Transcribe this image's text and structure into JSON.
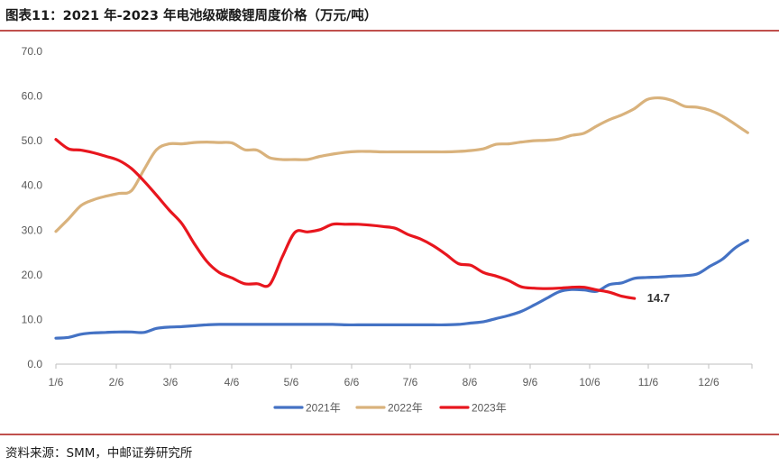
{
  "title": "图表11：2021 年-2023 年电池级碳酸锂周度价格（万元/吨）",
  "source": "资料来源：SMM，中邮证券研究所",
  "chart_data": {
    "type": "line",
    "title": "图表11：2021 年-2023 年电池级碳酸锂周度价格（万元/吨）",
    "xlabel": "",
    "ylabel": "",
    "ylim": [
      0,
      70
    ],
    "yticks": [
      "0.0",
      "10.0",
      "20.0",
      "30.0",
      "40.0",
      "50.0",
      "60.0",
      "70.0"
    ],
    "xticks": [
      "1/6",
      "2/6",
      "3/6",
      "4/6",
      "5/6",
      "6/6",
      "7/6",
      "8/6",
      "9/6",
      "10/6",
      "11/6",
      "12/6"
    ],
    "grid": false,
    "legend_position": "bottom",
    "annotation": "14.7",
    "series": [
      {
        "name": "2021年",
        "color": "#4472c4",
        "values": [
          5.8,
          6.0,
          6.7,
          7.0,
          7.1,
          7.2,
          7.2,
          7.1,
          8.0,
          8.3,
          8.4,
          8.6,
          8.8,
          8.9,
          8.9,
          8.9,
          8.9,
          8.9,
          8.9,
          8.9,
          8.9,
          8.9,
          8.9,
          8.8,
          8.8,
          8.8,
          8.8,
          8.8,
          8.8,
          8.8,
          8.8,
          8.8,
          8.9,
          9.2,
          9.5,
          10.2,
          10.9,
          11.8,
          13.2,
          14.7,
          16.2,
          16.7,
          16.6,
          16.3,
          17.8,
          18.2,
          19.2,
          19.4,
          19.5,
          19.7,
          19.8,
          20.2,
          21.9,
          23.5,
          26.0,
          27.7
        ]
      },
      {
        "name": "2022年",
        "color": "#d9b27c",
        "values": [
          29.7,
          32.5,
          35.5,
          36.8,
          37.6,
          38.2,
          38.8,
          43.5,
          48.0,
          49.3,
          49.3,
          49.6,
          49.7,
          49.6,
          49.5,
          48.0,
          47.9,
          46.2,
          45.8,
          45.8,
          45.8,
          46.5,
          47.0,
          47.4,
          47.6,
          47.6,
          47.5,
          47.5,
          47.5,
          47.5,
          47.5,
          47.5,
          47.6,
          47.8,
          48.2,
          49.2,
          49.3,
          49.7,
          50.0,
          50.1,
          50.4,
          51.2,
          51.7,
          53.3,
          54.7,
          55.8,
          57.2,
          59.2,
          59.6,
          59.0,
          57.7,
          57.5,
          56.8,
          55.5,
          53.7,
          51.8
        ]
      },
      {
        "name": "2023年",
        "color": "#e8161e",
        "values": [
          50.3,
          48.2,
          47.9,
          47.3,
          46.5,
          45.6,
          43.8,
          41.0,
          37.8,
          34.5,
          31.5,
          27.0,
          23.0,
          20.5,
          19.3,
          18.0,
          18.0,
          17.8,
          24.0,
          29.5,
          29.6,
          30.1,
          31.3,
          31.3,
          31.3,
          31.1,
          30.8,
          30.4,
          29.0,
          28.0,
          26.5,
          24.6,
          22.5,
          22.1,
          20.5,
          19.7,
          18.7,
          17.3,
          17.0,
          16.9,
          17.0,
          17.2,
          17.2,
          16.6,
          16.1,
          15.2,
          14.7
        ]
      }
    ]
  }
}
